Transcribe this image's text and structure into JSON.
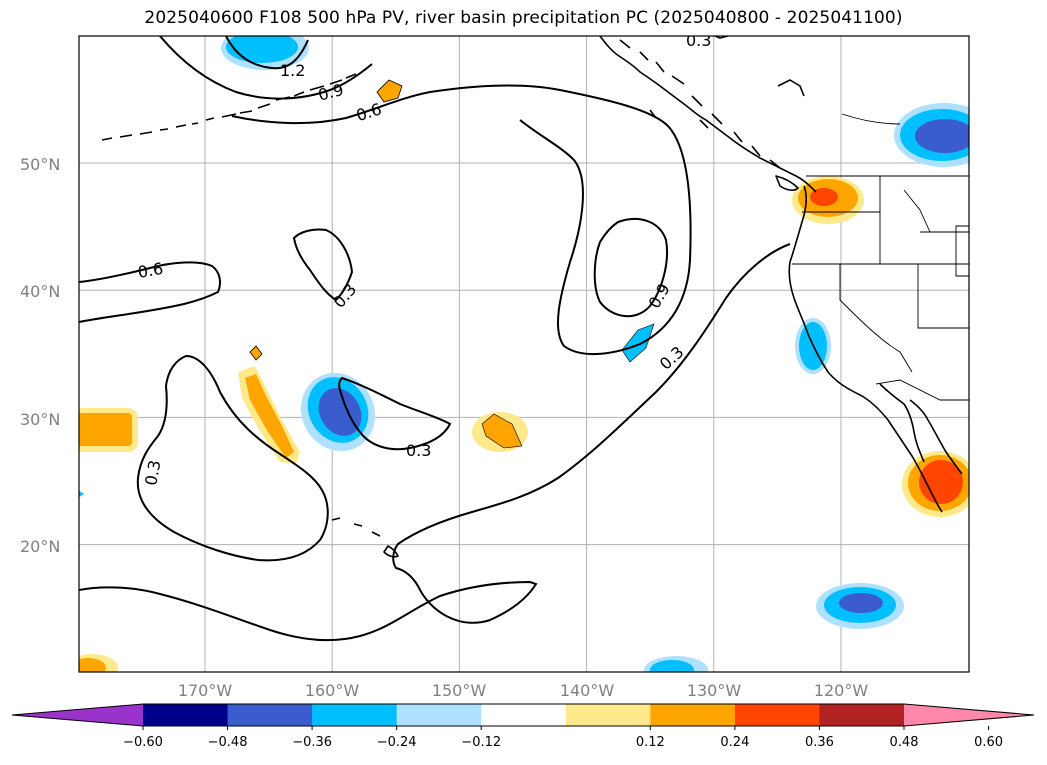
{
  "title": "2025040600 F108 500 hPa PV, river basin precipitation PC (2025040800 - 2025041100)",
  "map": {
    "lat_labels": [
      {
        "text": "50°N",
        "lat": 50
      },
      {
        "text": "40°N",
        "lat": 40
      },
      {
        "text": "30°N",
        "lat": 30
      },
      {
        "text": "20°N",
        "lat": 20
      }
    ],
    "lon_labels": [
      {
        "text": "170°W",
        "lon": -170
      },
      {
        "text": "160°W",
        "lon": -160
      },
      {
        "text": "150°W",
        "lon": -150
      },
      {
        "text": "140°W",
        "lon": -140
      },
      {
        "text": "130°W",
        "lon": -130
      },
      {
        "text": "120°W",
        "lon": -120
      }
    ],
    "contour_labels": [
      "1.2",
      "0.9",
      "0.6",
      "0.6",
      "0.3",
      "0.9",
      "0.3",
      "0.3",
      "0.3",
      "0.3"
    ]
  },
  "colorbar": {
    "colors": [
      "#9933cc",
      "#00008b",
      "#3a5ccc",
      "#00bfff",
      "#aee0ff",
      "#ffffff",
      "#ffe98a",
      "#ffa500",
      "#ff4500",
      "#b22222",
      "#ff88aa"
    ],
    "tick_labels": [
      "−0.60",
      "−0.48",
      "−0.36",
      "−0.24",
      "−0.12",
      "0.12",
      "0.24",
      "0.36",
      "0.48",
      "0.60"
    ]
  }
}
